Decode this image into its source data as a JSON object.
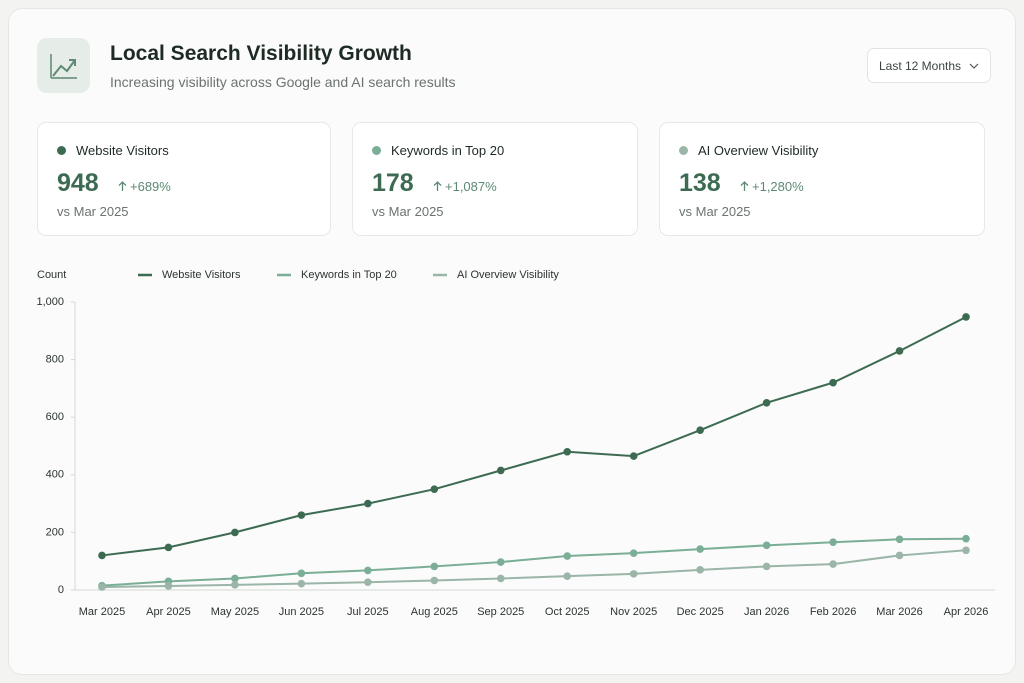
{
  "header": {
    "title": "Local Search Visibility Growth",
    "subtitle": "Increasing visibility across Google and AI search results"
  },
  "range_selector": "Last 12 Months",
  "kpis": [
    {
      "label": "Website Visitors",
      "value": 948,
      "change": "+689%",
      "comparison": "vs Mar 2025"
    },
    {
      "label": "Keywords in Top 20",
      "value": 178,
      "change": "+1,087%",
      "comparison": "vs Mar 2025"
    },
    {
      "label": "AI Overview Visibility",
      "value": 138,
      "change": "+1,280%",
      "comparison": "vs Mar 2025"
    }
  ],
  "chart_data": {
    "type": "line",
    "y_label": "Count",
    "categories": [
      "Mar 2025",
      "Apr 2025",
      "May 2025",
      "Jun 2025",
      "Jul 2025",
      "Aug 2025",
      "Sep 2025",
      "Oct 2025",
      "Nov 2025",
      "Dec 2025",
      "Jan 2026",
      "Feb 2026",
      "Mar 2026",
      "Apr 2026"
    ],
    "series": [
      {
        "name": "Website Visitors",
        "color": "#3d6b52",
        "values": [
          120,
          148,
          200,
          260,
          300,
          350,
          415,
          480,
          465,
          555,
          650,
          720,
          830,
          948
        ]
      },
      {
        "name": "Keywords in Top 20",
        "color": "#7aae96",
        "values": [
          15,
          30,
          40,
          58,
          68,
          82,
          97,
          118,
          128,
          142,
          155,
          166,
          176,
          178
        ]
      },
      {
        "name": "AI Overview Visibility",
        "color": "#9bb5a8",
        "values": [
          10,
          14,
          18,
          22,
          27,
          33,
          40,
          48,
          56,
          70,
          82,
          90,
          120,
          138
        ]
      }
    ],
    "ylim": [
      0,
      1000
    ],
    "yticks": [
      0,
      200,
      400,
      600,
      800,
      {
        "value": 1000,
        "label": "1,000"
      }
    ],
    "grid": false
  }
}
